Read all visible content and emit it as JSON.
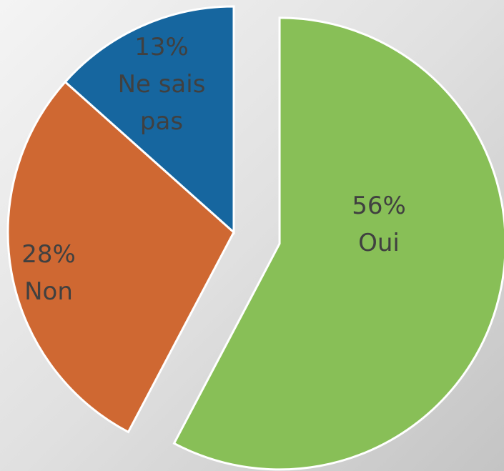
{
  "chart_data": {
    "type": "pie",
    "categories": [
      "Oui",
      "Non",
      "Ne sais pas"
    ],
    "values": [
      56,
      28,
      13
    ],
    "value_labels": [
      "56%",
      "28%",
      "13%"
    ],
    "colors": [
      "#88bf57",
      "#cf6832",
      "#16669f"
    ]
  }
}
